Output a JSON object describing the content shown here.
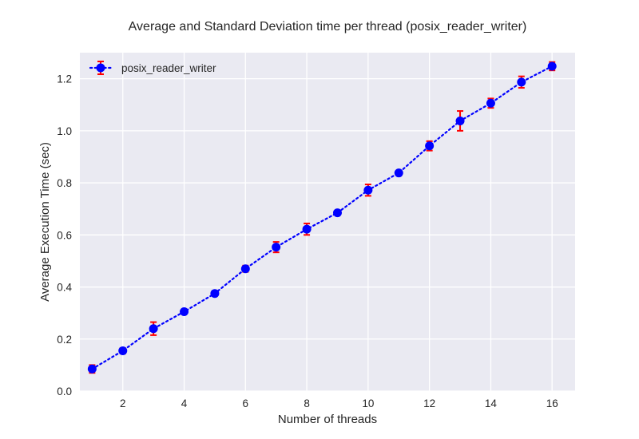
{
  "chart_data": {
    "type": "line",
    "title": "Average and Standard Deviation time per thread (posix_reader_writer)",
    "xlabel": "Number of threads",
    "ylabel": "Average Execution Time (sec)",
    "xlim": [
      0.6,
      16.75
    ],
    "ylim": [
      0.0,
      1.3
    ],
    "xticks": [
      2,
      4,
      6,
      8,
      10,
      12,
      14,
      16
    ],
    "yticks": [
      0.0,
      0.2,
      0.4,
      0.6,
      0.8,
      1.0,
      1.2
    ],
    "xtick_labels": [
      "2",
      "4",
      "6",
      "8",
      "10",
      "12",
      "14",
      "16"
    ],
    "ytick_labels": [
      "0.0",
      "0.2",
      "0.4",
      "0.6",
      "0.8",
      "1.0",
      "1.2"
    ],
    "grid": true,
    "legend_position": "top-left",
    "x": [
      1,
      2,
      3,
      4,
      5,
      6,
      7,
      8,
      9,
      10,
      11,
      12,
      13,
      14,
      15,
      16
    ],
    "series": [
      {
        "name": "posix_reader_writer",
        "values": [
          0.085,
          0.155,
          0.24,
          0.305,
          0.375,
          0.47,
          0.553,
          0.622,
          0.685,
          0.772,
          0.838,
          0.942,
          1.038,
          1.106,
          1.187,
          1.248
        ],
        "std": [
          0.015,
          0.01,
          0.025,
          0.005,
          0.005,
          0.012,
          0.02,
          0.022,
          0.005,
          0.022,
          0.008,
          0.018,
          0.038,
          0.018,
          0.022,
          0.016
        ],
        "line_color": "#0000ff",
        "marker_color": "#0000ff",
        "error_color": "#ff0000"
      }
    ]
  }
}
